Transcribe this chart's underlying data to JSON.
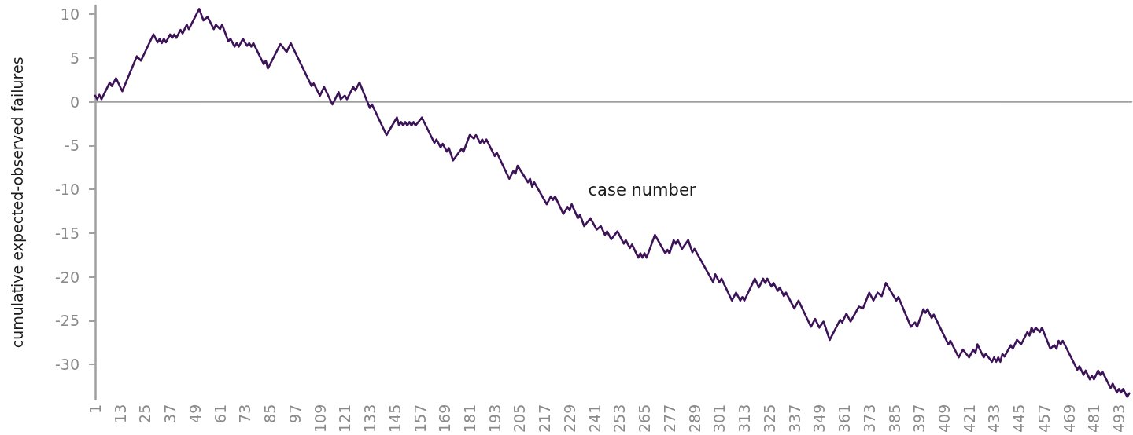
{
  "chart_data": {
    "type": "line",
    "xlabel": "case number",
    "ylabel": "cumulative expected-observed failures",
    "xlim": [
      1,
      499
    ],
    "xticks": [
      1,
      13,
      25,
      37,
      49,
      61,
      73,
      85,
      97,
      109,
      121,
      133,
      145,
      157,
      169,
      181,
      193,
      205,
      217,
      229,
      241,
      253,
      265,
      277,
      289,
      301,
      313,
      325,
      337,
      349,
      361,
      373,
      385,
      397,
      409,
      421,
      433,
      445,
      457,
      469,
      481,
      493
    ],
    "ylim": [
      -34,
      11
    ],
    "yticks": [
      10,
      5,
      0,
      -5,
      -10,
      -15,
      -20,
      -25,
      -30
    ],
    "marker": "none",
    "line_style": "solid",
    "series": [
      {
        "color": "#3d1458",
        "x": [
          1,
          2,
          3,
          4,
          8,
          9,
          11,
          14,
          21,
          23,
          29,
          31,
          32,
          33,
          34,
          35,
          37,
          38,
          39,
          40,
          42,
          43,
          45,
          46,
          51,
          53,
          55,
          58,
          59,
          61,
          62,
          65,
          66,
          68,
          69,
          70,
          72,
          74,
          75,
          76,
          77,
          82,
          83,
          84,
          90,
          93,
          95,
          105,
          106,
          109,
          111,
          115,
          118,
          119,
          121,
          122,
          125,
          126,
          128,
          133,
          134,
          141,
          146,
          147,
          148,
          149,
          150,
          151,
          152,
          153,
          154,
          155,
          158,
          164,
          165,
          167,
          168,
          170,
          171,
          173,
          177,
          178,
          181,
          183,
          184,
          186,
          187,
          188,
          189,
          193,
          194,
          200,
          202,
          203,
          204,
          209,
          210,
          211,
          212,
          218,
          220,
          221,
          222,
          226,
          228,
          229,
          230,
          233,
          234,
          236,
          239,
          242,
          244,
          246,
          247,
          249,
          252,
          255,
          256,
          258,
          259,
          262,
          263,
          264,
          265,
          266,
          270,
          275,
          276,
          277,
          279,
          280,
          281,
          283,
          286,
          288,
          289,
          298,
          299,
          301,
          302,
          307,
          309,
          311,
          312,
          313,
          318,
          320,
          322,
          323,
          324,
          326,
          327,
          329,
          330,
          332,
          333,
          337,
          339,
          345,
          347,
          349,
          351,
          354,
          359,
          360,
          362,
          364,
          368,
          370,
          373,
          375,
          377,
          379,
          381,
          386,
          387,
          393,
          395,
          396,
          399,
          400,
          401,
          403,
          404,
          411,
          412,
          416,
          418,
          421,
          423,
          424,
          425,
          428,
          429,
          432,
          433,
          434,
          435,
          436,
          437,
          438,
          441,
          442,
          444,
          446,
          449,
          450,
          451,
          452,
          453,
          455,
          456,
          460,
          462,
          463,
          464,
          465,
          466,
          473,
          474,
          476,
          477,
          479,
          480,
          481,
          483,
          484,
          485,
          489,
          490,
          492,
          493,
          494,
          495,
          497,
          498
        ],
        "values": [
          0.7,
          0.3,
          0.8,
          0.3,
          2.2,
          1.8,
          2.7,
          1.2,
          5.2,
          4.7,
          7.7,
          6.8,
          7.2,
          6.7,
          7.2,
          6.8,
          7.7,
          7.3,
          7.7,
          7.3,
          8.2,
          7.8,
          8.8,
          8.3,
          10.6,
          9.3,
          9.7,
          8.3,
          8.8,
          8.3,
          8.8,
          6.9,
          7.2,
          6.3,
          6.7,
          6.3,
          7.2,
          6.4,
          6.7,
          6.3,
          6.7,
          4.3,
          4.7,
          3.8,
          6.6,
          5.7,
          6.7,
          1.8,
          2.1,
          0.7,
          1.7,
          -0.3,
          1.1,
          0.3,
          0.7,
          0.3,
          1.7,
          1.3,
          2.2,
          -0.7,
          -0.3,
          -3.8,
          -1.8,
          -2.7,
          -2.3,
          -2.7,
          -2.3,
          -2.7,
          -2.3,
          -2.7,
          -2.3,
          -2.7,
          -1.8,
          -4.7,
          -4.3,
          -5.2,
          -4.8,
          -5.7,
          -5.3,
          -6.7,
          -5.4,
          -5.7,
          -3.8,
          -4.2,
          -3.8,
          -4.7,
          -4.3,
          -4.7,
          -4.3,
          -6.2,
          -5.8,
          -8.8,
          -7.9,
          -8.2,
          -7.3,
          -9.2,
          -8.8,
          -9.7,
          -9.2,
          -11.7,
          -10.8,
          -11.2,
          -10.8,
          -12.8,
          -12.0,
          -12.4,
          -11.7,
          -13.3,
          -12.9,
          -14.2,
          -13.3,
          -14.6,
          -14.2,
          -15.2,
          -14.8,
          -15.7,
          -14.8,
          -16.2,
          -15.8,
          -16.7,
          -16.3,
          -17.8,
          -17.3,
          -17.8,
          -17.3,
          -17.8,
          -15.2,
          -17.3,
          -16.9,
          -17.3,
          -15.8,
          -16.2,
          -15.8,
          -16.8,
          -15.8,
          -17.2,
          -16.8,
          -20.6,
          -19.7,
          -20.6,
          -20.2,
          -22.7,
          -21.8,
          -22.7,
          -22.3,
          -22.7,
          -20.2,
          -21.2,
          -20.2,
          -20.7,
          -20.2,
          -21.1,
          -20.7,
          -21.6,
          -21.2,
          -22.2,
          -21.8,
          -23.6,
          -22.7,
          -25.7,
          -24.8,
          -25.8,
          -25.1,
          -27.2,
          -24.9,
          -25.2,
          -24.2,
          -25.1,
          -23.4,
          -23.6,
          -21.8,
          -22.7,
          -21.8,
          -22.2,
          -20.7,
          -22.7,
          -22.3,
          -25.7,
          -25.2,
          -25.7,
          -23.7,
          -24.1,
          -23.7,
          -24.7,
          -24.3,
          -27.7,
          -27.3,
          -29.2,
          -28.3,
          -29.2,
          -28.3,
          -28.7,
          -27.7,
          -29.2,
          -28.8,
          -29.7,
          -29.2,
          -29.7,
          -29.2,
          -29.7,
          -28.8,
          -29.1,
          -27.8,
          -28.2,
          -27.2,
          -27.7,
          -26.3,
          -26.7,
          -25.8,
          -26.3,
          -25.8,
          -26.3,
          -25.8,
          -28.2,
          -27.8,
          -28.2,
          -27.3,
          -27.7,
          -27.3,
          -30.6,
          -30.2,
          -31.2,
          -30.7,
          -31.7,
          -31.3,
          -31.7,
          -30.7,
          -31.2,
          -30.8,
          -32.7,
          -32.2,
          -33.2,
          -32.8,
          -33.2,
          -32.8,
          -33.7,
          -33.3
        ]
      }
    ]
  }
}
